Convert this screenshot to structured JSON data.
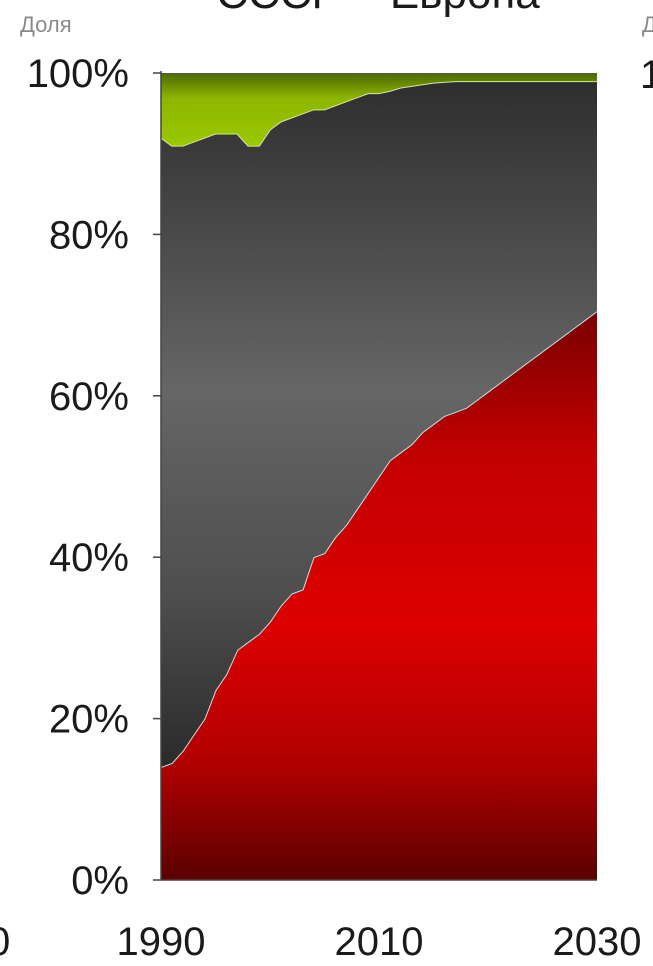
{
  "chart_data": {
    "type": "area",
    "title": "СССР – Европа",
    "ylabel": "Доля",
    "xlabel": "",
    "ylim": [
      0,
      100
    ],
    "xlim": [
      1990,
      2030
    ],
    "y_ticks": [
      "0%",
      "20%",
      "40%",
      "60%",
      "80%",
      "100%"
    ],
    "y_tick_values": [
      0,
      20,
      40,
      60,
      80,
      100
    ],
    "x_ticks": [
      "1990",
      "2010",
      "2030"
    ],
    "x_tick_values": [
      1990,
      2010,
      2030
    ],
    "clipped_left_tick": "0",
    "clipped_right_label": "Д",
    "clipped_right_tick": "1",
    "stacked": true,
    "x": [
      1990,
      1991,
      1992,
      1993,
      1994,
      1995,
      1996,
      1997,
      1998,
      1999,
      2000,
      2001,
      2002,
      2003,
      2004,
      2005,
      2006,
      2007,
      2008,
      2009,
      2010,
      2011,
      2012,
      2013,
      2014,
      2015,
      2016,
      2017,
      2018,
      2019,
      2020,
      2021,
      2022,
      2023,
      2024,
      2025,
      2026,
      2027,
      2028,
      2029,
      2030
    ],
    "series": [
      {
        "color": "#cc0000",
        "values": [
          14,
          14.5,
          16,
          18,
          20,
          23.5,
          25.5,
          28.5,
          29.5,
          30.5,
          32,
          34,
          35.5,
          36,
          40,
          40.5,
          42.5,
          44,
          46,
          48,
          50,
          52,
          53,
          54,
          55.5,
          56.5,
          57.5,
          58,
          58.5,
          59.5,
          60.5,
          61.5,
          62.5,
          63.5,
          64.5,
          65.5,
          66.5,
          67.5,
          68.5,
          69.5,
          70.5
        ]
      },
      {
        "color": "#555555",
        "values": [
          78,
          76.5,
          75,
          73.5,
          72,
          69,
          67,
          64,
          61.5,
          60.5,
          61,
          60,
          59,
          59,
          55.5,
          55,
          53.5,
          52.5,
          51,
          49.5,
          47.5,
          45.8,
          45.2,
          44.4,
          43.1,
          42.3,
          41.4,
          41,
          40.5,
          39.5,
          38.5,
          37.5,
          36.5,
          35.5,
          34.5,
          33.5,
          32.5,
          31.5,
          30.5,
          29.5,
          28.5
        ]
      },
      {
        "color": "#8db600",
        "values": [
          8,
          9,
          9,
          8.5,
          8,
          7.5,
          7.5,
          7.5,
          9,
          9,
          7,
          6,
          5.5,
          5,
          4.5,
          4.5,
          4,
          3.5,
          3,
          2.5,
          2.5,
          2.2,
          1.8,
          1.6,
          1.4,
          1.2,
          1.1,
          1,
          1,
          1,
          1,
          1,
          1,
          1,
          1,
          1,
          1,
          1,
          1,
          1,
          1
        ]
      }
    ]
  }
}
